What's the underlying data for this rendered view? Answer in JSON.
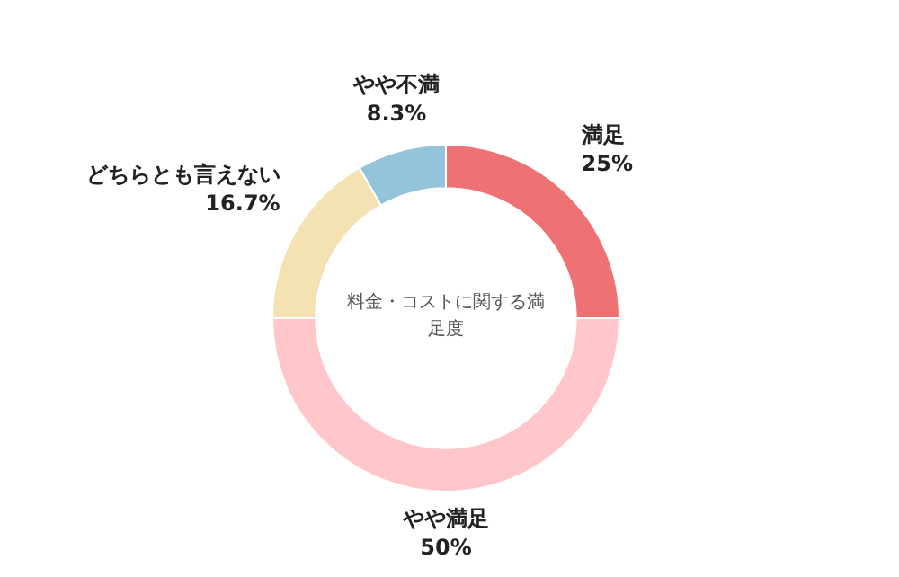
{
  "chart_data": {
    "type": "donut",
    "title": "料金・コストに関する満足度",
    "categories": [
      "満足",
      "やや満足",
      "どちらとも言えない",
      "やや不満"
    ],
    "values": [
      25,
      50,
      16.7,
      8.3
    ],
    "value_labels": [
      "25%",
      "50%",
      "16.7%",
      "8.3%"
    ],
    "colors": [
      "#ee7173",
      "#ffc7ca",
      "#f5e2b3",
      "#93c4da"
    ]
  }
}
